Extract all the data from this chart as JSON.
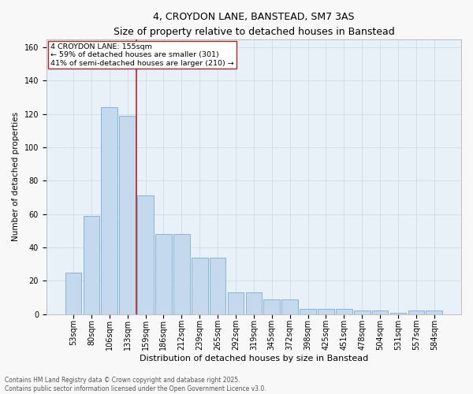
{
  "title": "4, CROYDON LANE, BANSTEAD, SM7 3AS",
  "subtitle": "Size of property relative to detached houses in Banstead",
  "xlabel": "Distribution of detached houses by size in Banstead",
  "ylabel": "Number of detached properties",
  "categories": [
    "53sqm",
    "80sqm",
    "106sqm",
    "133sqm",
    "159sqm",
    "186sqm",
    "212sqm",
    "239sqm",
    "265sqm",
    "292sqm",
    "319sqm",
    "345sqm",
    "372sqm",
    "398sqm",
    "425sqm",
    "451sqm",
    "478sqm",
    "504sqm",
    "531sqm",
    "557sqm",
    "584sqm"
  ],
  "values": [
    25,
    59,
    124,
    119,
    71,
    48,
    48,
    34,
    34,
    13,
    13,
    9,
    9,
    3,
    3,
    3,
    2,
    2,
    1,
    2,
    2
  ],
  "bar_color": "#c5d9ee",
  "bar_edge_color": "#7aadd4",
  "vline_color": "#bb2222",
  "vline_x": 3.5,
  "annotation_text": "4 CROYDON LANE: 155sqm\n← 59% of detached houses are smaller (301)\n41% of semi-detached houses are larger (210) →",
  "annotation_box_facecolor": "#ffffff",
  "annotation_box_edgecolor": "#bb2222",
  "grid_color": "#c8d8e8",
  "plot_bg_color": "#e8f0f8",
  "footer": "Contains HM Land Registry data © Crown copyright and database right 2025.\nContains public sector information licensed under the Open Government Licence v3.0.",
  "ylim": [
    0,
    165
  ],
  "yticks": [
    0,
    20,
    40,
    60,
    80,
    100,
    120,
    140,
    160
  ],
  "title_fontsize": 9,
  "subtitle_fontsize": 8.5,
  "tick_fontsize": 7,
  "ylabel_fontsize": 7.5,
  "xlabel_fontsize": 8,
  "annot_fontsize": 6.8,
  "footer_fontsize": 5.5
}
